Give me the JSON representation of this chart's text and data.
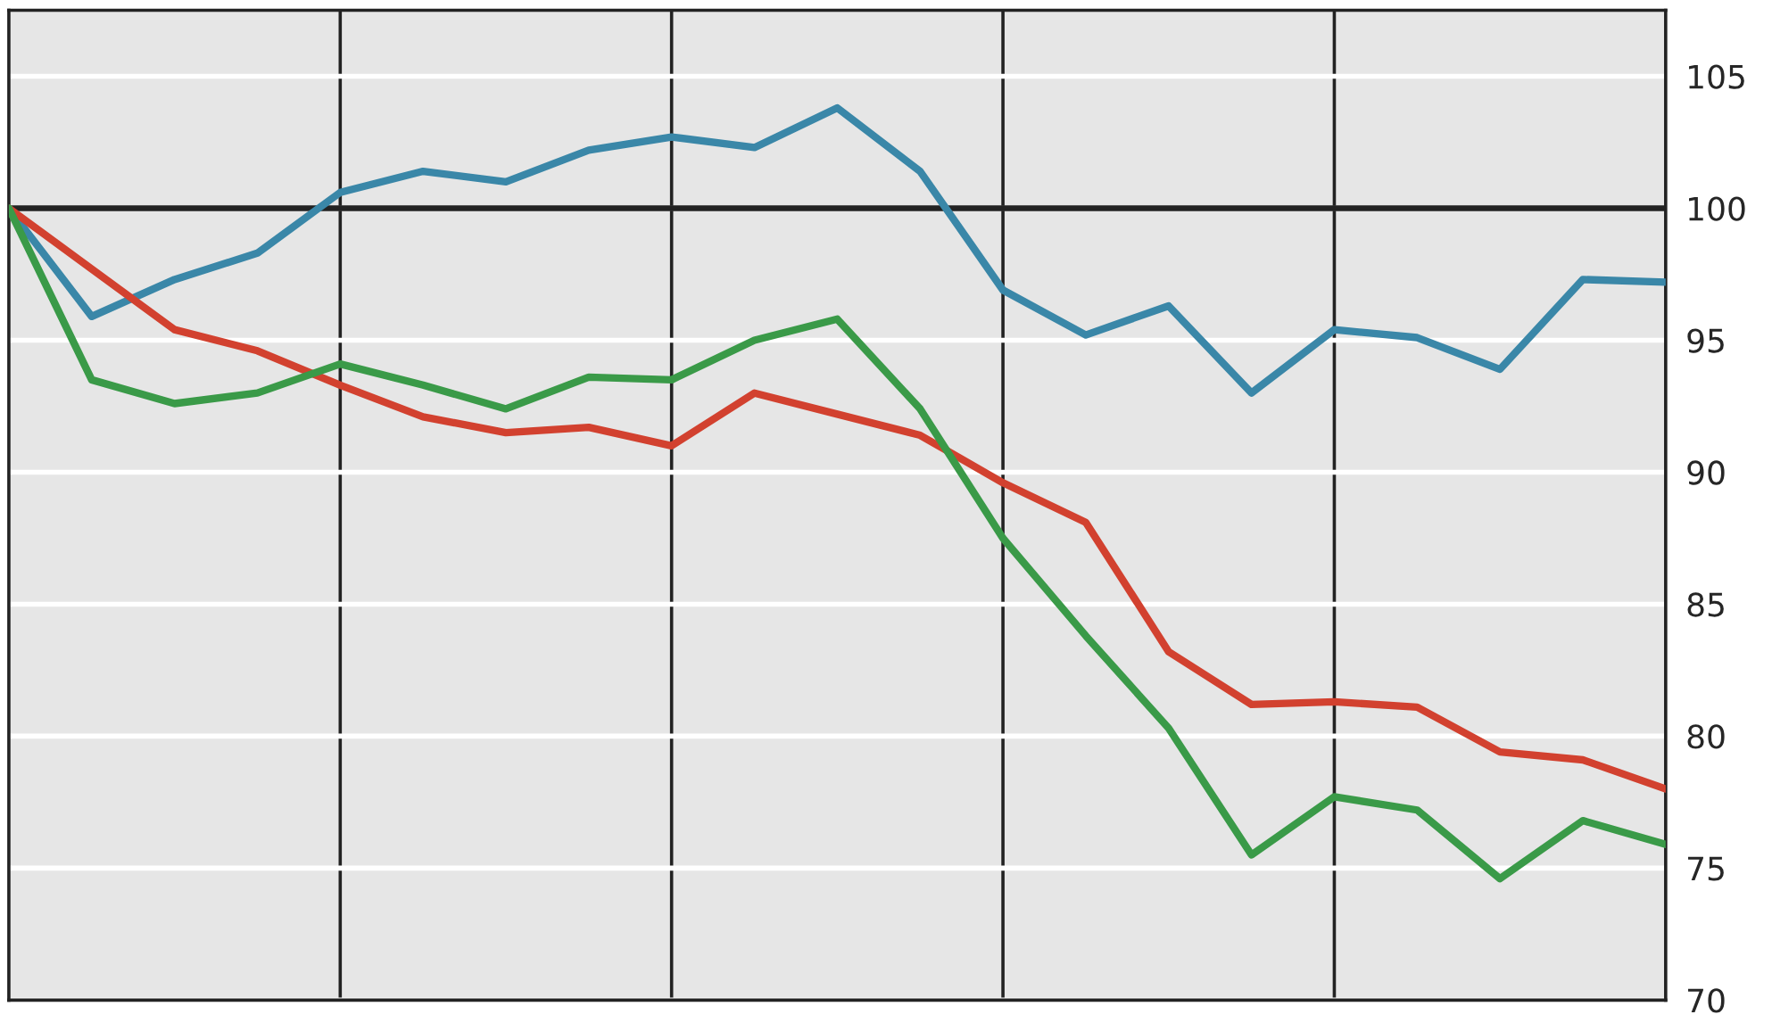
{
  "chart_data": {
    "type": "line",
    "categories": [
      null,
      null,
      null,
      null,
      null,
      null,
      null,
      null,
      null,
      null,
      null,
      null,
      null,
      null,
      null,
      null,
      null,
      null,
      null,
      null,
      null
    ],
    "series": [
      {
        "color": "#3a87a8",
        "values": [
          100,
          95.9,
          97.3,
          98.3,
          100.6,
          101.4,
          101.0,
          102.2,
          102.7,
          102.3,
          103.8,
          101.4,
          96.9,
          95.2,
          96.3,
          93.0,
          95.4,
          95.1,
          93.9,
          97.3,
          97.2
        ]
      },
      {
        "color": "#d2412f",
        "values": [
          100,
          97.7,
          95.4,
          94.6,
          93.3,
          92.1,
          91.5,
          91.7,
          91.0,
          93.0,
          92.2,
          91.4,
          89.6,
          88.1,
          83.2,
          81.2,
          81.3,
          81.1,
          79.4,
          79.1,
          78.0
        ]
      },
      {
        "color": "#3a9a48",
        "values": [
          100,
          93.5,
          92.6,
          93.0,
          94.1,
          93.3,
          92.4,
          93.6,
          93.5,
          95.0,
          95.8,
          92.4,
          87.5,
          83.8,
          80.3,
          75.5,
          77.7,
          77.2,
          74.6,
          76.8,
          75.9
        ]
      }
    ],
    "ylim": [
      70,
      107.5
    ],
    "yticks": [
      70,
      75,
      80,
      85,
      90,
      95,
      100,
      105
    ],
    "ref_lines": [
      {
        "axis": "y",
        "value": 100,
        "color": "#222222"
      }
    ],
    "grid": true,
    "tick_labels": "y",
    "marker": "none",
    "line_style": "solid"
  }
}
